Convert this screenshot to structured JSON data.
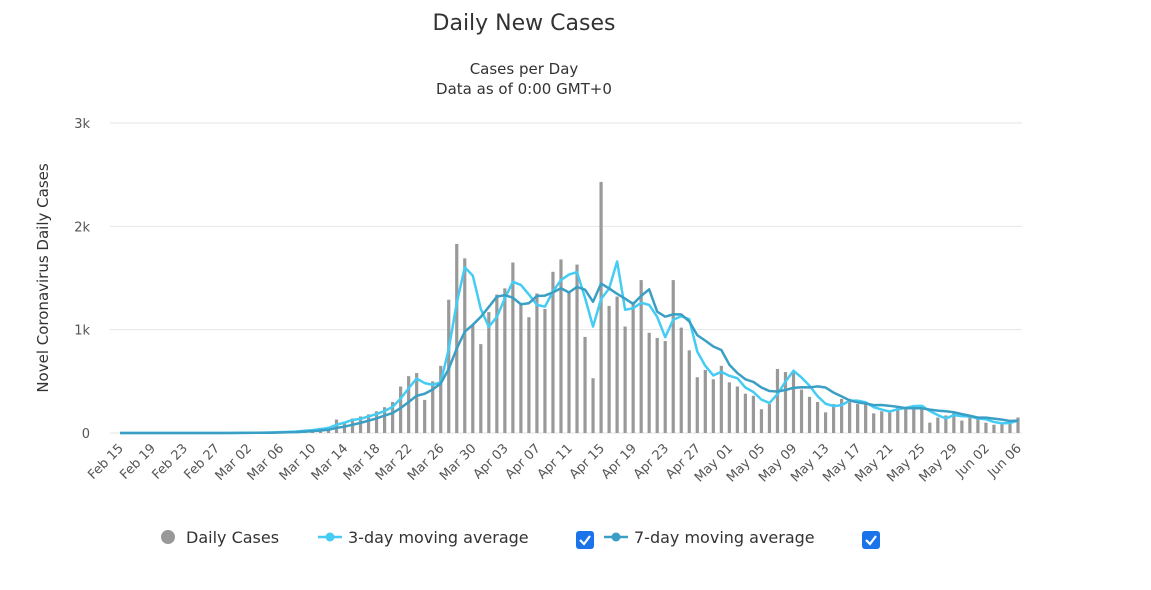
{
  "chart_data": {
    "type": "bar",
    "title": "Daily New Cases",
    "subtitle": [
      "Cases per Day",
      "Data as of 0:00 GMT+0"
    ],
    "y_label": "Novel Coronavirus Daily Cases",
    "categories": [
      "Feb 15",
      null,
      null,
      null,
      "Feb 19",
      null,
      null,
      null,
      "Feb 23",
      null,
      null,
      null,
      "Feb 27",
      null,
      null,
      null,
      "Mar 02",
      null,
      null,
      null,
      "Mar 06",
      null,
      null,
      null,
      "Mar 10",
      null,
      null,
      null,
      "Mar 14",
      null,
      null,
      null,
      "Mar 18",
      null,
      null,
      null,
      "Mar 22",
      null,
      null,
      null,
      "Mar 26",
      null,
      null,
      null,
      "Mar 30",
      null,
      null,
      null,
      "Apr 03",
      null,
      null,
      null,
      "Apr 07",
      null,
      null,
      null,
      "Apr 11",
      null,
      null,
      null,
      "Apr 15",
      null,
      null,
      null,
      "Apr 19",
      null,
      null,
      null,
      "Apr 23",
      null,
      null,
      null,
      "Apr 27",
      null,
      null,
      null,
      "May 01",
      null,
      null,
      null,
      "May 05",
      null,
      null,
      null,
      "May 09",
      null,
      null,
      null,
      "May 13",
      null,
      null,
      null,
      "May 17",
      null,
      null,
      null,
      "May 21",
      null,
      null,
      null,
      "May 25",
      null,
      null,
      null,
      "May 29",
      null,
      null,
      null,
      "Jun 02",
      null,
      null,
      null,
      "Jun 06"
    ],
    "series": [
      {
        "name": "Daily Cases",
        "type": "bar",
        "color": "#999999",
        "values": [
          0,
          0,
          0,
          0,
          0,
          0,
          0,
          0,
          0,
          0,
          0,
          0,
          0,
          1,
          1,
          2,
          3,
          4,
          5,
          8,
          10,
          15,
          20,
          30,
          35,
          50,
          60,
          130,
          110,
          140,
          160,
          180,
          210,
          250,
          300,
          450,
          550,
          580,
          320,
          500,
          650,
          1290,
          1830,
          1690,
          1050,
          860,
          1170,
          1340,
          1400,
          1650,
          1250,
          1120,
          1350,
          1200,
          1560,
          1680,
          1360,
          1630,
          930,
          530,
          2430,
          1230,
          1320,
          1030,
          1270,
          1480,
          970,
          920,
          890,
          1480,
          1020,
          800,
          540,
          610,
          520,
          650,
          490,
          450,
          380,
          360,
          230,
          280,
          620,
          590,
          600,
          420,
          350,
          300,
          200,
          280,
          330,
          330,
          280,
          280,
          190,
          210,
          220,
          260,
          250,
          270,
          270,
          100,
          150,
          170,
          200,
          120,
          160,
          140,
          100,
          80,
          100,
          110,
          150
        ]
      },
      {
        "name": "3-day moving average",
        "type": "line",
        "color": "#44ccf4",
        "values": [
          0,
          0,
          0,
          0,
          0,
          0,
          0,
          0,
          0,
          0,
          0,
          0,
          0,
          0,
          1,
          1,
          2,
          3,
          4,
          6,
          8,
          11,
          15,
          22,
          28,
          38,
          48,
          80,
          100,
          127,
          137,
          160,
          183,
          213,
          253,
          333,
          433,
          527,
          483,
          467,
          490,
          813,
          1257,
          1603,
          1523,
          1200,
          1027,
          1123,
          1303,
          1463,
          1433,
          1340,
          1240,
          1223,
          1370,
          1480,
          1533,
          1557,
          1307,
          1030,
          1297,
          1397,
          1660,
          1193,
          1207,
          1260,
          1240,
          1123,
          927,
          1097,
          1130,
          1100,
          787,
          650,
          557,
          593,
          553,
          530,
          440,
          397,
          323,
          290,
          377,
          497,
          603,
          537,
          457,
          357,
          283,
          260,
          270,
          313,
          313,
          297,
          250,
          227,
          207,
          230,
          243,
          260,
          263,
          213,
          173,
          140,
          173,
          163,
          160,
          140,
          133,
          107,
          93,
          97,
          120
        ]
      },
      {
        "name": "7-day moving average",
        "type": "line",
        "color": "#3a9fc4",
        "values": [
          0,
          0,
          0,
          0,
          0,
          0,
          0,
          0,
          0,
          0,
          0,
          0,
          0,
          0,
          0,
          1,
          1,
          2,
          2,
          3,
          5,
          7,
          9,
          13,
          18,
          24,
          31,
          49,
          62,
          79,
          98,
          119,
          141,
          169,
          193,
          241,
          300,
          360,
          380,
          421,
          479,
          620,
          817,
          980,
          1047,
          1124,
          1220,
          1319,
          1334,
          1309,
          1246,
          1256,
          1326,
          1330,
          1361,
          1401,
          1360,
          1414,
          1387,
          1270,
          1446,
          1399,
          1347,
          1300,
          1249,
          1327,
          1390,
          1174,
          1126,
          1149,
          1147,
          1080,
          946,
          894,
          837,
          803,
          661,
          580,
          520,
          494,
          440,
          406,
          401,
          416,
          437,
          443,
          441,
          451,
          440,
          391,
          354,
          316,
          296,
          286,
          270,
          271,
          263,
          253,
          241,
          240,
          239,
          226,
          217,
          210,
          201,
          183,
          167,
          149,
          149,
          139,
          129,
          116,
          120
        ]
      }
    ],
    "ylim": [
      0,
      3000
    ],
    "yticks": [
      0,
      {
        "value": 1000,
        "label": "1k"
      },
      {
        "value": 2000,
        "label": "2k"
      },
      {
        "value": 3000,
        "label": "3k"
      }
    ],
    "grid": true
  }
}
